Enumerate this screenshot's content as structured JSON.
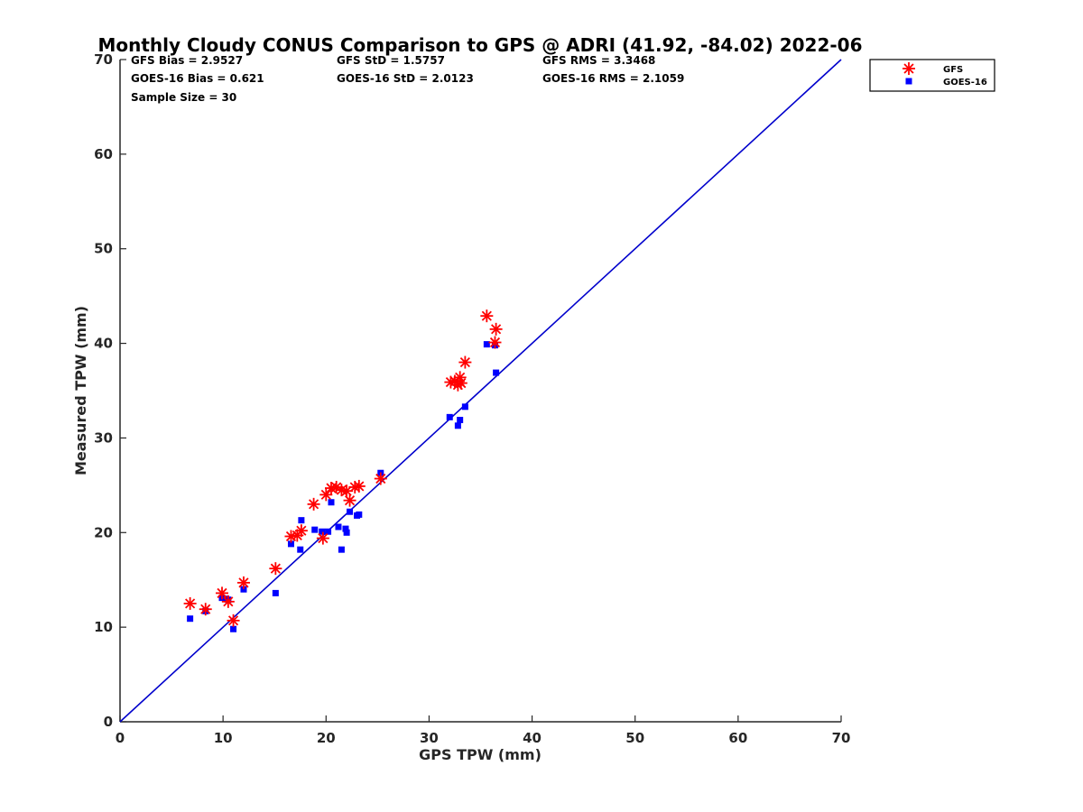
{
  "chart_data": {
    "type": "scatter",
    "title": "Monthly Cloudy CONUS Comparison to GPS @ ADRI (41.92, -84.02) 2022-06",
    "xlabel": "GPS TPW (mm)",
    "ylabel": "Measured TPW (mm)",
    "xlim": [
      0,
      70
    ],
    "ylim": [
      0,
      70
    ],
    "xticks": [
      "0",
      "10",
      "20",
      "30",
      "40",
      "50",
      "60",
      "70"
    ],
    "yticks": [
      "0",
      "10",
      "20",
      "30",
      "40",
      "50",
      "60",
      "70"
    ],
    "grid": false,
    "legend_position": "outside-top-right",
    "stats": [
      [
        "GFS Bias = 2.9527",
        "GFS StD = 1.5757",
        "GFS RMS = 3.3468"
      ],
      [
        "GOES-16 Bias = 0.621",
        "GOES-16 StD = 2.0123",
        "GOES-16 RMS = 2.1059"
      ],
      [
        "Sample Size = 30"
      ]
    ],
    "reference_line": {
      "from": [
        0,
        0
      ],
      "to": [
        70,
        70
      ],
      "color": "#0000cc"
    },
    "series": [
      {
        "name": "GFS",
        "marker": "asterisk",
        "color": "#ff0000",
        "points": [
          [
            6.8,
            12.5
          ],
          [
            8.3,
            11.9
          ],
          [
            9.9,
            13.6
          ],
          [
            10.5,
            12.7
          ],
          [
            11.0,
            10.7
          ],
          [
            12.0,
            14.7
          ],
          [
            15.1,
            16.2
          ],
          [
            16.6,
            19.6
          ],
          [
            17.2,
            19.7
          ],
          [
            17.6,
            20.2
          ],
          [
            18.8,
            23.0
          ],
          [
            19.7,
            19.4
          ],
          [
            20.0,
            24.0
          ],
          [
            20.5,
            24.7
          ],
          [
            21.0,
            24.8
          ],
          [
            21.5,
            24.5
          ],
          [
            22.0,
            24.4
          ],
          [
            22.3,
            23.4
          ],
          [
            22.8,
            24.8
          ],
          [
            23.2,
            24.9
          ],
          [
            25.3,
            25.7
          ],
          [
            32.1,
            35.9
          ],
          [
            32.8,
            35.6
          ],
          [
            33.0,
            36.4
          ],
          [
            33.1,
            35.8
          ],
          [
            33.5,
            38.0
          ],
          [
            35.6,
            42.9
          ],
          [
            36.4,
            40.1
          ],
          [
            36.5,
            41.5
          ],
          [
            32.5,
            36.0
          ]
        ]
      },
      {
        "name": "GOES-16",
        "marker": "square",
        "color": "#0000ff",
        "points": [
          [
            6.8,
            10.9
          ],
          [
            8.3,
            11.7
          ],
          [
            9.9,
            13.1
          ],
          [
            10.3,
            13.0
          ],
          [
            11.0,
            9.8
          ],
          [
            12.0,
            14.0
          ],
          [
            15.1,
            13.6
          ],
          [
            16.6,
            18.8
          ],
          [
            17.5,
            18.2
          ],
          [
            17.6,
            21.3
          ],
          [
            18.9,
            20.3
          ],
          [
            19.6,
            20.1
          ],
          [
            20.2,
            20.1
          ],
          [
            20.5,
            23.2
          ],
          [
            21.2,
            20.6
          ],
          [
            21.5,
            18.2
          ],
          [
            21.9,
            20.4
          ],
          [
            22.0,
            20.0
          ],
          [
            22.3,
            22.2
          ],
          [
            23.0,
            21.8
          ],
          [
            23.2,
            21.9
          ],
          [
            25.3,
            26.3
          ],
          [
            32.0,
            32.2
          ],
          [
            32.8,
            31.3
          ],
          [
            33.0,
            31.9
          ],
          [
            33.5,
            33.3
          ],
          [
            35.6,
            39.9
          ],
          [
            36.4,
            39.8
          ],
          [
            36.5,
            36.9
          ],
          [
            10.5,
            12.9
          ]
        ]
      }
    ]
  }
}
